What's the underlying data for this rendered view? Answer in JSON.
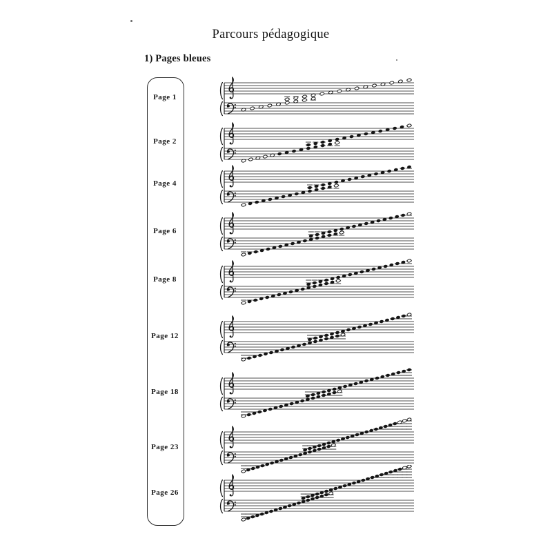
{
  "page": {
    "title": "Parcours pédagogique",
    "section_heading": "1) Pages bleues"
  },
  "list_box": {
    "shape": "rounded-rectangle",
    "border_color": "#2b2b2b"
  },
  "ink_color": "#151515",
  "staff": {
    "clefs": [
      "treble-clef",
      "bass-clef"
    ],
    "description": "grand staff, ascending diatonic note range per page; middle-C region notes written in both clefs"
  },
  "systems": [
    {
      "label": "Page 1",
      "low": -7,
      "high": 12,
      "overlap_low": -2,
      "overlap_high": 1,
      "note_style": "open",
      "open_low": 0,
      "open_high": 0
    },
    {
      "label": "Page 2",
      "low": -11,
      "high": 12,
      "overlap_low": -2,
      "overlap_high": 2,
      "note_style": "filled",
      "open_low": 5,
      "open_high": 1
    },
    {
      "label": "Page 4",
      "low": -12,
      "high": 13,
      "overlap_low": -2,
      "overlap_high": 2,
      "note_style": "filled",
      "open_low": 1,
      "open_high": 0
    },
    {
      "label": "Page 6",
      "low": -14,
      "high": 13,
      "overlap_low": -3,
      "overlap_high": 2,
      "note_style": "filled",
      "open_low": 1,
      "open_high": 1
    },
    {
      "label": "Page 8",
      "low": -14,
      "high": 14,
      "overlap_low": -3,
      "overlap_high": 2,
      "note_style": "filled",
      "open_low": 1,
      "open_high": 1
    },
    {
      "label": "Page 12",
      "low": -15,
      "high": 15,
      "overlap_low": -3,
      "overlap_high": 3,
      "note_style": "filled",
      "open_low": 1,
      "open_high": 1
    },
    {
      "label": "Page 18",
      "low": -15,
      "high": 16,
      "overlap_low": -3,
      "overlap_high": 3,
      "note_style": "filled",
      "open_low": 1,
      "open_high": 0
    },
    {
      "label": "Page 23",
      "low": -16,
      "high": 19,
      "overlap_low": -3,
      "overlap_high": 3,
      "note_style": "filled",
      "open_low": 1,
      "open_high": 3
    },
    {
      "label": "Page 26",
      "low": -16,
      "high": 20,
      "overlap_low": -3,
      "overlap_high": 3,
      "note_style": "filled",
      "open_low": 1,
      "open_high": 2
    }
  ]
}
